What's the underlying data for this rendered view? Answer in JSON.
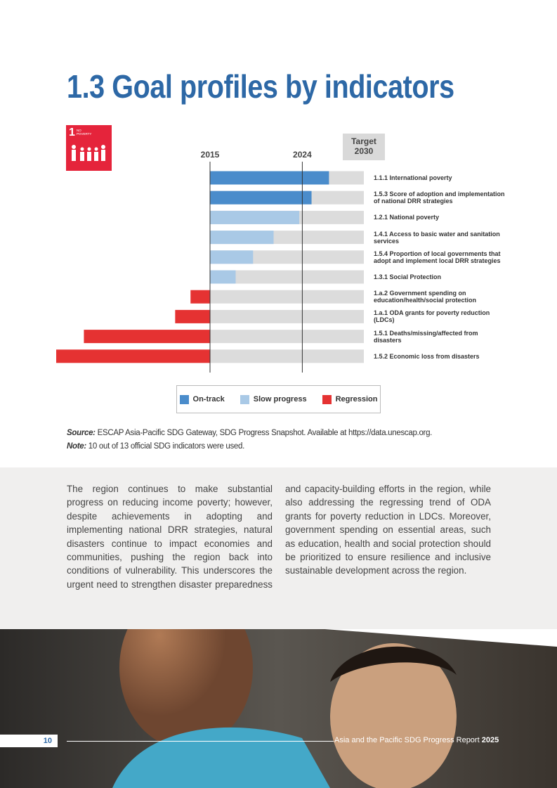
{
  "header": {
    "title": "1.3 Goal profiles by indicators"
  },
  "sdg_icon": {
    "number": "1",
    "label": "NO POVERTY"
  },
  "chart_data": {
    "type": "bar",
    "orientation": "horizontal",
    "categories": [
      "1.1.1 International poverty",
      "1.5.3 Score of adoption and implementation of national DRR strategies",
      "1.2.1 National poverty",
      "1.4.1 Access to basic water and sanitation services",
      "1.5.4 Proportion of local governments that adopt and implement local DRR strategies",
      "1.3.1 Social Protection",
      "1.a.2 Government spending on education/health/social protection",
      "1.a.1 ODA grants for poverty reduction (LDCs)",
      "1.5.1 Deaths/missing/affected from disasters",
      "1.5.2 Economic loss from disasters"
    ],
    "values": [
      2026.6,
      2024.9,
      2023.7,
      2021.2,
      2019.2,
      2017.5,
      2013.1,
      2011.6,
      2002.7,
      2000.0
    ],
    "colors": [
      "#4a8ccb",
      "#4a8ccb",
      "#a9c9e6",
      "#a9c9e6",
      "#a9c9e6",
      "#a9c9e6",
      "#e53232",
      "#e53232",
      "#e53232",
      "#e53232"
    ],
    "xlim": [
      2000,
      2030
    ],
    "xticks": [
      2015,
      2024,
      {
        "value": 2030,
        "label": "Target 2030"
      }
    ],
    "legend": [
      {
        "name": "On-track",
        "color": "#4a8ccb"
      },
      {
        "name": "Slow progress",
        "color": "#a9c9e6"
      },
      {
        "name": "Regression",
        "color": "#e53232"
      }
    ]
  },
  "source": {
    "label": "Source:",
    "text": "ESCAP Asia-Pacific SDG Gateway, SDG Progress Snapshot. Available at https://data.unescap.org."
  },
  "note": {
    "label": "Note:",
    "text": "10 out of 13 official SDG indicators were used."
  },
  "body": "The region continues to make substantial progress on reducing income poverty; however, despite achievements in adopting and implementing national DRR strategies, natural disasters continue to impact economies and communities, pushing the region back into conditions of vulnerability. This underscores the urgent need to strengthen disaster preparedness and capacity-building efforts in the region, while also addressing the regressing trend of ODA grants for poverty reduction in LDCs. Moreover, government spending on essential areas, such as education, health and social protection should be prioritized to ensure resilience and inclusive sustainable development across the region.",
  "footer": {
    "page": "10",
    "report": "Asia and the Pacific SDG Progress Report",
    "year": "2025"
  }
}
